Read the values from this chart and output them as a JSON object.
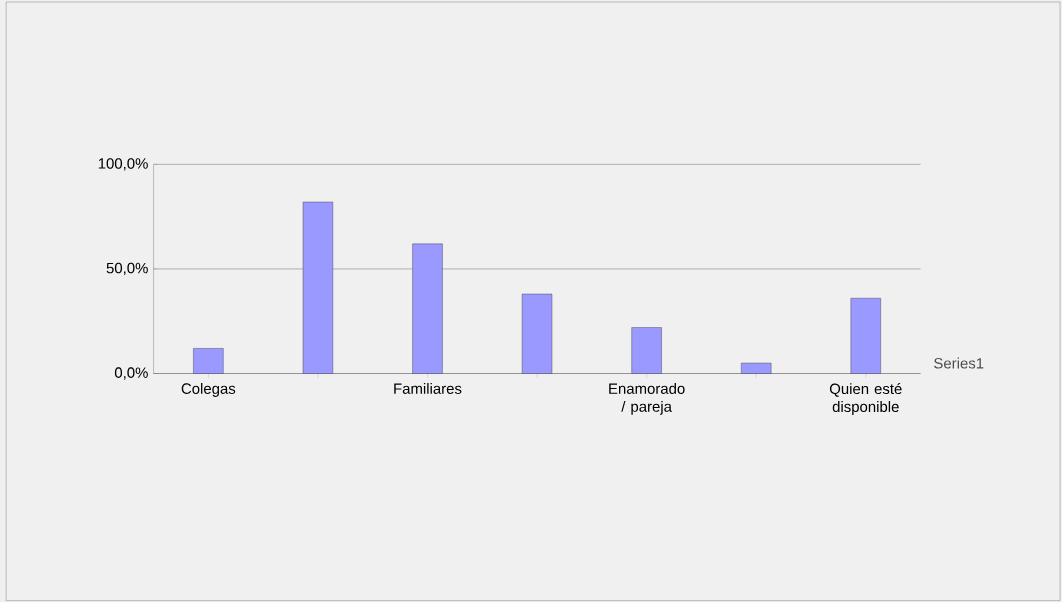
{
  "chart_data": {
    "type": "bar",
    "categories": [
      "Colegas",
      null,
      "Familiares",
      null,
      "Enamorado / pareja",
      null,
      "Quien esté disponible"
    ],
    "series": [
      {
        "name": "Series1",
        "color": "#9999ff",
        "values": [
          12,
          82,
          62,
          38,
          22,
          5,
          36
        ]
      }
    ],
    "ylim": [
      0,
      100
    ],
    "yticks": [
      {
        "value": 0,
        "label": "0,0%"
      },
      {
        "value": 50,
        "label": "50,0%"
      },
      {
        "value": 100,
        "label": "100,0%"
      }
    ],
    "grid": "y"
  }
}
